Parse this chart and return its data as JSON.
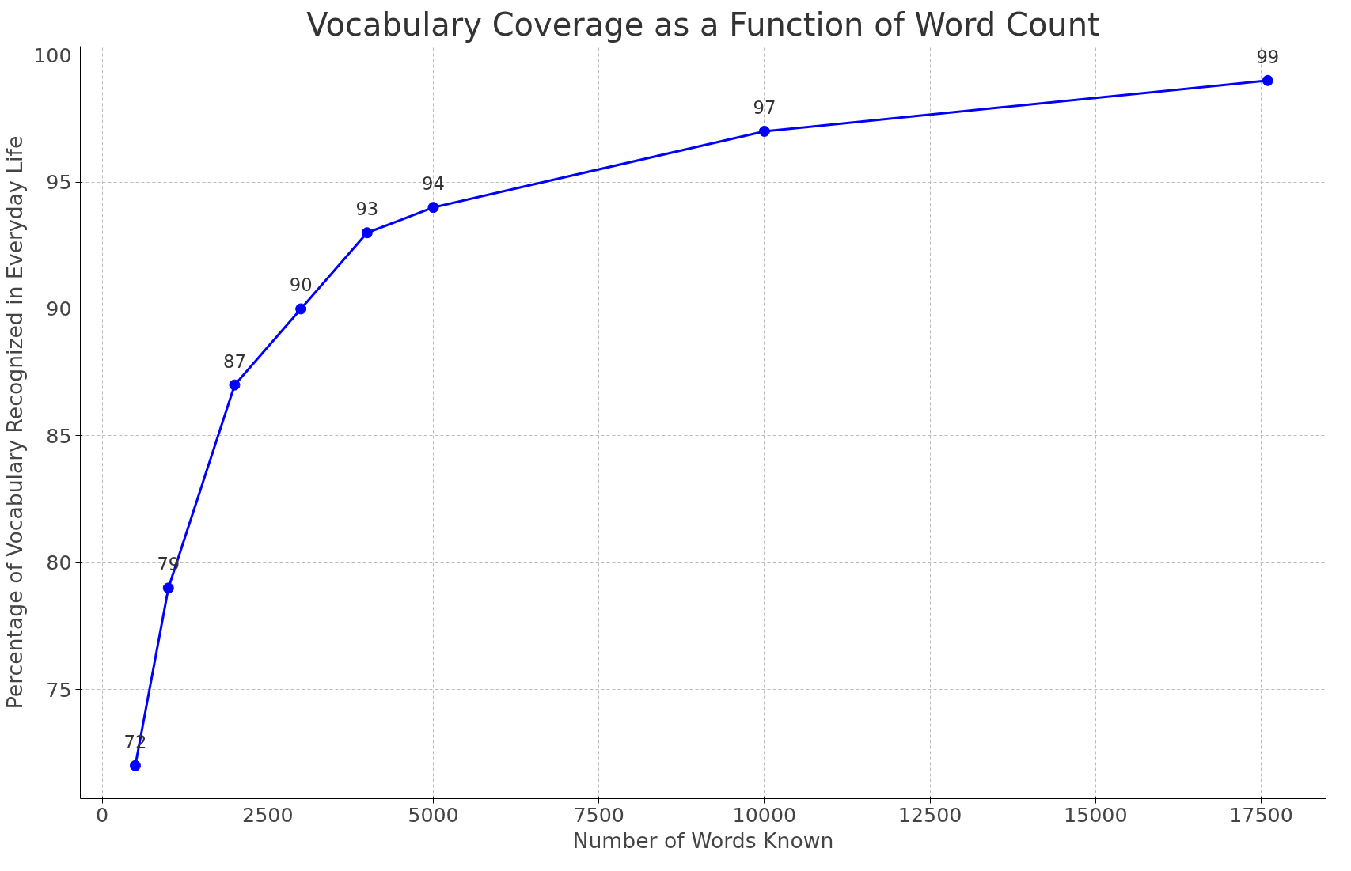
{
  "chart_data": {
    "type": "line",
    "title": "Vocabulary Coverage as a Function of Word Count",
    "xlabel": "Number of Words Known",
    "ylabel": "Percentage of Vocabulary Recognized in Everyday Life",
    "x": [
      500,
      1000,
      2000,
      3000,
      4000,
      5000,
      10000,
      17600
    ],
    "series": [
      {
        "color": "#0000ff",
        "values": [
          72,
          79,
          87,
          90,
          93,
          94,
          97,
          99
        ]
      }
    ],
    "xlim": [
      -330,
      18480
    ],
    "ylim": [
      70.7,
      100.35
    ],
    "xticks": [
      0,
      2500,
      5000,
      7500,
      10000,
      12500,
      15000,
      17500
    ],
    "yticks": [
      75,
      80,
      85,
      90,
      95,
      100
    ],
    "grid": true,
    "marker": "circle",
    "line_style": "solid",
    "data_labels": true
  }
}
